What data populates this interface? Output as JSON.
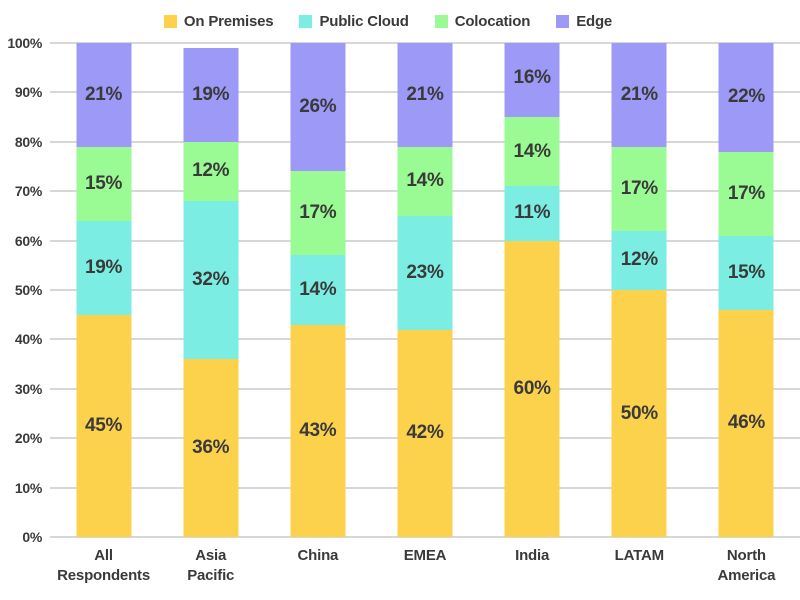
{
  "chart_data": {
    "type": "bar",
    "stacked": true,
    "title": "",
    "categories": [
      "All\nRespondents",
      "Asia\nPacific",
      "China",
      "EMEA",
      "India",
      "LATAM",
      "North\nAmerica"
    ],
    "series": [
      {
        "name": "On Premises",
        "color": "#FCD14B",
        "values": [
          45,
          36,
          43,
          42,
          60,
          50,
          46
        ]
      },
      {
        "name": "Public Cloud",
        "color": "#7BEDE2",
        "values": [
          19,
          32,
          14,
          23,
          11,
          12,
          15
        ]
      },
      {
        "name": "Colocation",
        "color": "#9AFA93",
        "values": [
          15,
          12,
          17,
          14,
          14,
          17,
          17
        ]
      },
      {
        "name": "Edge",
        "color": "#9C99F7",
        "values": [
          21,
          19,
          26,
          21,
          16,
          21,
          22
        ]
      }
    ],
    "y_ticks": [
      0,
      10,
      20,
      30,
      40,
      50,
      60,
      70,
      80,
      90,
      100
    ],
    "ylim": [
      0,
      100
    ],
    "grid": true,
    "legend_position": "top",
    "value_suffix": "%",
    "xlabel": "",
    "ylabel": "",
    "gridline_color": "#D7D7D7",
    "text_color": "#3A3A3A"
  }
}
